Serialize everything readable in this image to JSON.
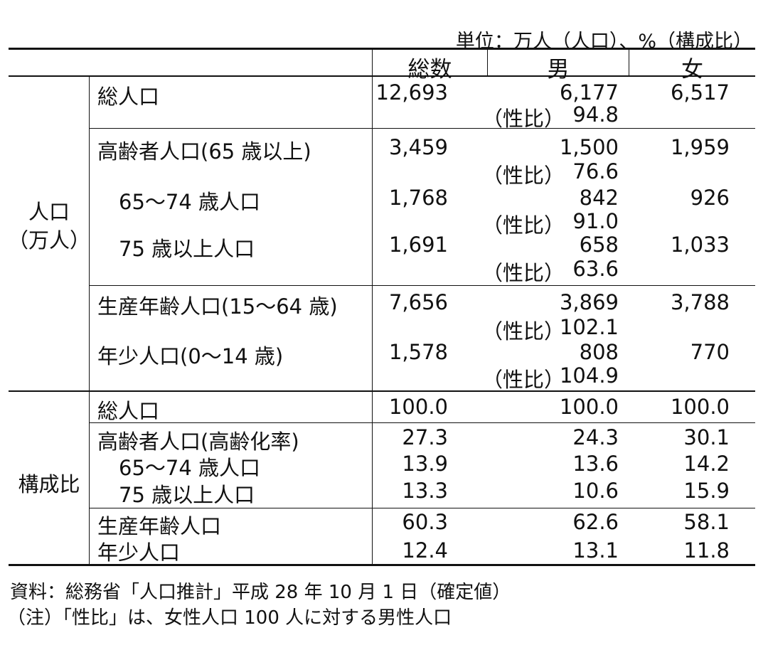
{
  "unit_note": "単位：万人（人口）、%（構成比）",
  "headers": {
    "total": "総数",
    "male": "男",
    "female": "女"
  },
  "groups": {
    "population": [
      "人口",
      "（万人）"
    ],
    "composition": "構成比"
  },
  "ratio_label": "（性比）",
  "population_rows": [
    {
      "label": "総人口",
      "total": "12,693",
      "male": "6,177",
      "female": "6,517",
      "sex_ratio": "94.8"
    },
    {
      "label": "高齢者人口(65 歳以上)",
      "total": "3,459",
      "male": "1,500",
      "female": "1,959",
      "sex_ratio": "76.6"
    },
    {
      "label": "65～74 歳人口",
      "total": "1,768",
      "male": "842",
      "female": "926",
      "sex_ratio": "91.0"
    },
    {
      "label": "75 歳以上人口",
      "total": "1,691",
      "male": "658",
      "female": "1,033",
      "sex_ratio": "63.6"
    },
    {
      "label": "生産年齢人口(15～64 歳)",
      "total": "7,656",
      "male": "3,869",
      "female": "3,788",
      "sex_ratio": "102.1"
    },
    {
      "label": "年少人口(0～14 歳)",
      "total": "1,578",
      "male": "808",
      "female": "770",
      "sex_ratio": "104.9"
    }
  ],
  "composition_rows": [
    {
      "label": "総人口",
      "total": "100.0",
      "male": "100.0",
      "female": "100.0"
    },
    {
      "label": "高齢者人口(高齢化率)",
      "total": "27.3",
      "male": "24.3",
      "female": "30.1"
    },
    {
      "label": "65～74 歳人口",
      "total": "13.9",
      "male": "13.6",
      "female": "14.2"
    },
    {
      "label": "75 歳以上人口",
      "total": "13.3",
      "male": "10.6",
      "female": "15.9"
    },
    {
      "label": "生産年齢人口",
      "total": "60.3",
      "male": "62.6",
      "female": "58.1"
    },
    {
      "label": "年少人口",
      "total": "12.4",
      "male": "13.1",
      "female": "11.8"
    }
  ],
  "source": "資料：総務省「人口推計」平成 28 年 10 月 1 日（確定値）",
  "footnote": "（注）「性比」は、女性人口 100 人に対する男性人口"
}
